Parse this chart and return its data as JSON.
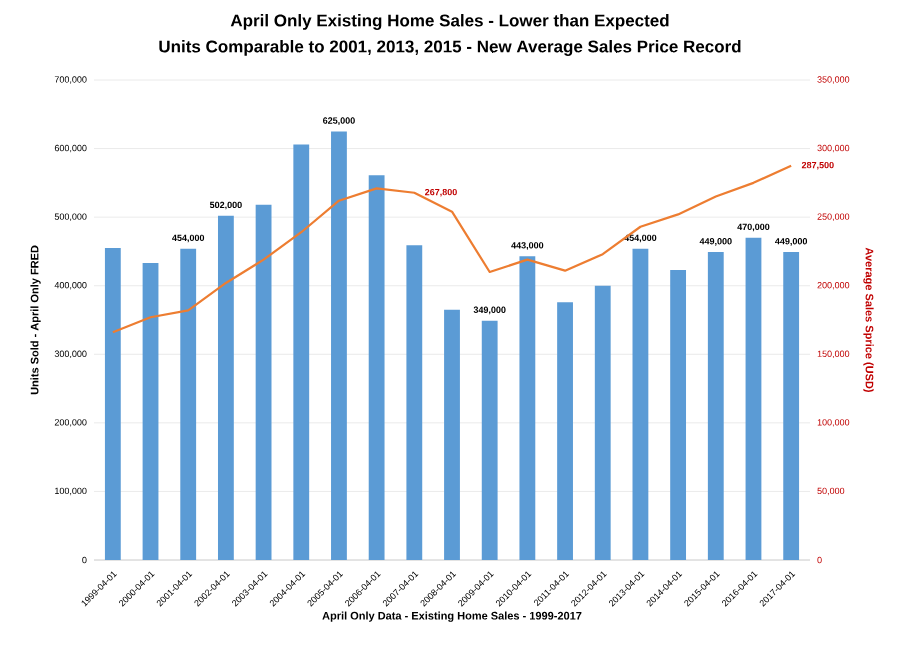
{
  "chart_data": {
    "type": "bar",
    "title": "April Only Existing Home Sales - Lower than Expected",
    "subtitle": "Units Comparable to 2001, 2013, 2015 - New Average Sales Price Record",
    "xlabel": "April Only Data - Existing Home Sales - 1999-2017",
    "ylabel": "Units Sold - April  Only FRED",
    "y2label": "Average Sales Sprice (USD)",
    "categories": [
      "1999-04-01",
      "2000-04-01",
      "2001-04-01",
      "2002-04-01",
      "2003-04-01",
      "2004-04-01",
      "2005-04-01",
      "2006-04-01",
      "2007-04-01",
      "2008-04-01",
      "2009-04-01",
      "2010-04-01",
      "2011-04-01",
      "2012-04-01",
      "2013-04-01",
      "2014-04-01",
      "2015-04-01",
      "2016-04-01",
      "2017-04-01"
    ],
    "series": [
      {
        "color": "#5b9bd5",
        "values": [
          455000,
          433000,
          454000,
          502000,
          518000,
          606000,
          625000,
          561000,
          459000,
          365000,
          349000,
          443000,
          376000,
          400000,
          454000,
          423000,
          449000,
          470000,
          449000
        ],
        "value_labels": [
          null,
          null,
          "454,000",
          "502,000",
          null,
          null,
          "625,000",
          null,
          null,
          null,
          "349,000",
          "443,000",
          null,
          null,
          "454,000",
          null,
          "449,000",
          "470,000",
          "449,000"
        ]
      },
      {
        "type": "line",
        "axis": "y2",
        "color": "#ed7d31",
        "values": [
          166000,
          177000,
          182000,
          202000,
          219000,
          239000,
          262000,
          271000,
          267800,
          254000,
          210000,
          219000,
          211000,
          223000,
          243000,
          252000,
          265000,
          275000,
          287500
        ],
        "value_labels": [
          null,
          null,
          null,
          null,
          null,
          null,
          null,
          null,
          "267,800",
          null,
          null,
          null,
          null,
          null,
          null,
          null,
          null,
          null,
          "287,500"
        ]
      }
    ],
    "ylim": [
      0,
      700000
    ],
    "yticks": [
      0,
      {
        "value": 100000,
        "label": "100,000"
      },
      {
        "value": 200000,
        "label": "200,000"
      },
      {
        "value": 300000,
        "label": "300,000"
      },
      {
        "value": 400000,
        "label": "400,000"
      },
      {
        "value": 500000,
        "label": "500,000"
      },
      {
        "value": 600000,
        "label": "600,000"
      },
      {
        "value": 700000,
        "label": "700,000"
      }
    ],
    "y2lim": [
      0,
      350000
    ],
    "y2ticks": [
      0,
      {
        "value": 50000,
        "label": "50,000"
      },
      {
        "value": 100000,
        "label": "100,000"
      },
      {
        "value": 150000,
        "label": "150,000"
      },
      {
        "value": 200000,
        "label": "200,000"
      },
      {
        "value": 250000,
        "label": "250,000"
      },
      {
        "value": 300000,
        "label": "300,000"
      },
      {
        "value": 350000,
        "label": "350,000"
      }
    ],
    "grid": "y"
  }
}
